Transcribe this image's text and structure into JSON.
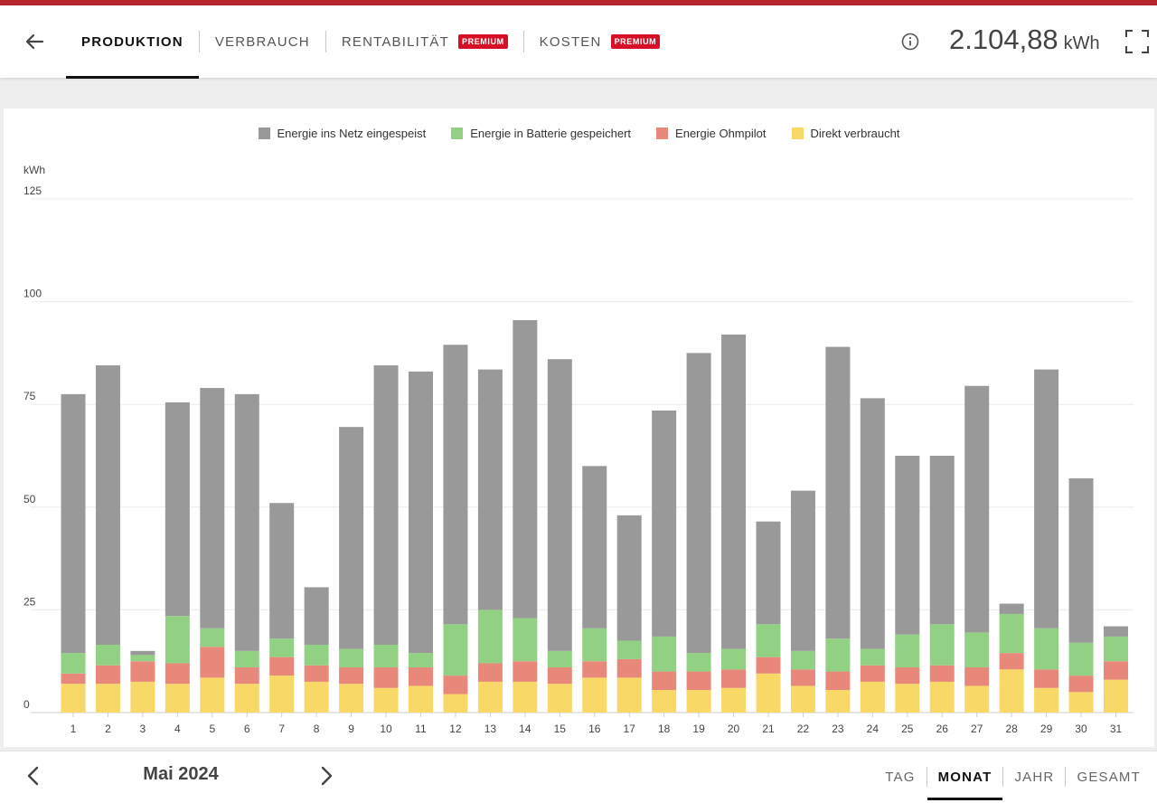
{
  "header": {
    "tabs": [
      {
        "label": "PRODUKTION",
        "active": true
      },
      {
        "label": "VERBRAUCH",
        "active": false
      },
      {
        "label": "RENTABILITÄT",
        "badge": "PREMIUM",
        "active": false
      },
      {
        "label": "KOSTEN",
        "badge": "PREMIUM",
        "active": false
      }
    ],
    "total_value": "2.104,88",
    "total_unit": "kWh"
  },
  "icons": {
    "back": "arrow-left-icon",
    "info": "info-icon",
    "fullscreen": "fullscreen-icon",
    "prev": "chevron-left-icon",
    "next": "chevron-right-icon"
  },
  "colors": {
    "accent": "#b7262d",
    "badge": "#d60f27",
    "grid_feed": "#999999",
    "battery": "#92d184",
    "ohmpilot": "#e8887a",
    "direct": "#f8d867"
  },
  "chart_data": {
    "type": "bar",
    "stacked": true,
    "ylabel": "kWh",
    "ylim": [
      0,
      125
    ],
    "yticks": [
      0,
      25,
      50,
      75,
      100,
      125
    ],
    "grid": true,
    "legend_position": "top",
    "categories": [
      "1",
      "2",
      "3",
      "4",
      "5",
      "6",
      "7",
      "8",
      "9",
      "10",
      "11",
      "12",
      "13",
      "14",
      "15",
      "16",
      "17",
      "18",
      "19",
      "20",
      "21",
      "22",
      "23",
      "24",
      "25",
      "26",
      "27",
      "28",
      "29",
      "30",
      "31"
    ],
    "series": [
      {
        "name": "Direkt verbraucht",
        "color": "#f8d867",
        "values": [
          7,
          7,
          7.5,
          7,
          8.5,
          7,
          9,
          7.5,
          7,
          6,
          6.5,
          4.5,
          7.5,
          7.5,
          7,
          8.5,
          8.5,
          5.5,
          5.5,
          6,
          9.5,
          6.5,
          5.5,
          7.5,
          7,
          7.5,
          6.5,
          10.5,
          6,
          5,
          8
        ]
      },
      {
        "name": "Energie Ohmpilot",
        "color": "#e8887a",
        "values": [
          2.5,
          4.5,
          5,
          5,
          7.5,
          4,
          4.5,
          4,
          4,
          5,
          4.5,
          4.5,
          4.5,
          5,
          4,
          4,
          4.5,
          4.5,
          4.5,
          4.5,
          4,
          4,
          4.5,
          4,
          4,
          4,
          4.5,
          4,
          4.5,
          4,
          4.5
        ]
      },
      {
        "name": "Energie in Batterie gespeichert",
        "color": "#92d184",
        "values": [
          5,
          5,
          1.5,
          11.5,
          4.5,
          4,
          4.5,
          5,
          4.5,
          5.5,
          3.5,
          12.5,
          13,
          10.5,
          4,
          8,
          4.5,
          8.5,
          4.5,
          5,
          8,
          4.5,
          8,
          4,
          8,
          10,
          8.5,
          9.5,
          10,
          8,
          6
        ]
      },
      {
        "name": "Energie ins Netz eingespeist",
        "color": "#999999",
        "values": [
          63,
          68,
          1,
          52,
          58.5,
          62.5,
          33,
          14,
          54,
          68,
          68.5,
          68,
          58.5,
          72.5,
          71,
          39.5,
          30.5,
          55,
          73,
          76.5,
          25,
          39,
          71,
          61,
          43.5,
          41,
          60,
          2.5,
          63,
          40,
          2.5
        ]
      }
    ]
  },
  "footer": {
    "month": "Mai 2024",
    "periods": [
      {
        "label": "TAG",
        "active": false
      },
      {
        "label": "MONAT",
        "active": true
      },
      {
        "label": "JAHR",
        "active": false
      },
      {
        "label": "GESAMT",
        "active": false
      }
    ]
  }
}
